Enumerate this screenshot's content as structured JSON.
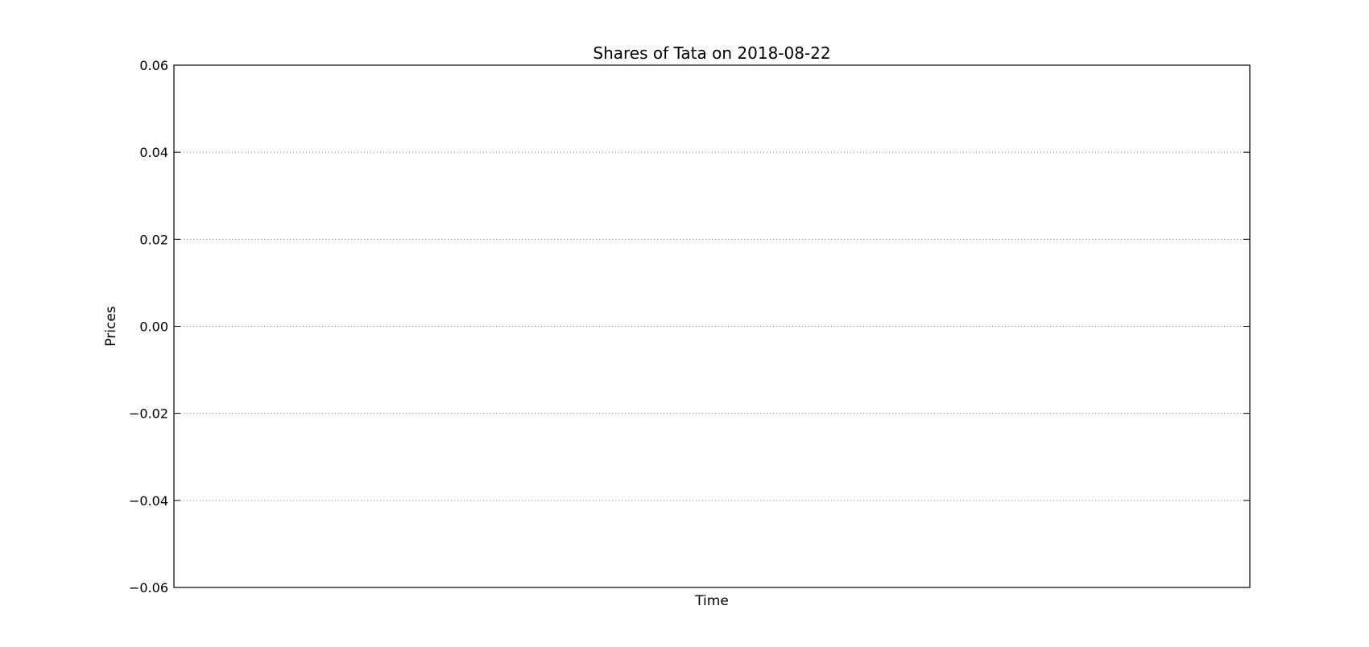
{
  "chart_data": {
    "type": "line",
    "title": "Shares of Tata on 2018-08-22",
    "xlabel": "Time",
    "ylabel": "Prices",
    "ylim": [
      -0.06,
      0.06
    ],
    "yticks": [
      -0.06,
      -0.04,
      -0.02,
      0.0,
      0.02,
      0.04,
      0.06
    ],
    "ytick_labels": [
      "−0.06",
      "−0.04",
      "−0.02",
      "0.00",
      "0.02",
      "0.04",
      "0.06"
    ],
    "xticks": [],
    "series": [],
    "grid": {
      "y": true,
      "x": false,
      "style": "dotted"
    },
    "colors": {
      "background": "#ffffff",
      "axes": "#000000",
      "grid": "#808080",
      "text": "#000000"
    }
  }
}
